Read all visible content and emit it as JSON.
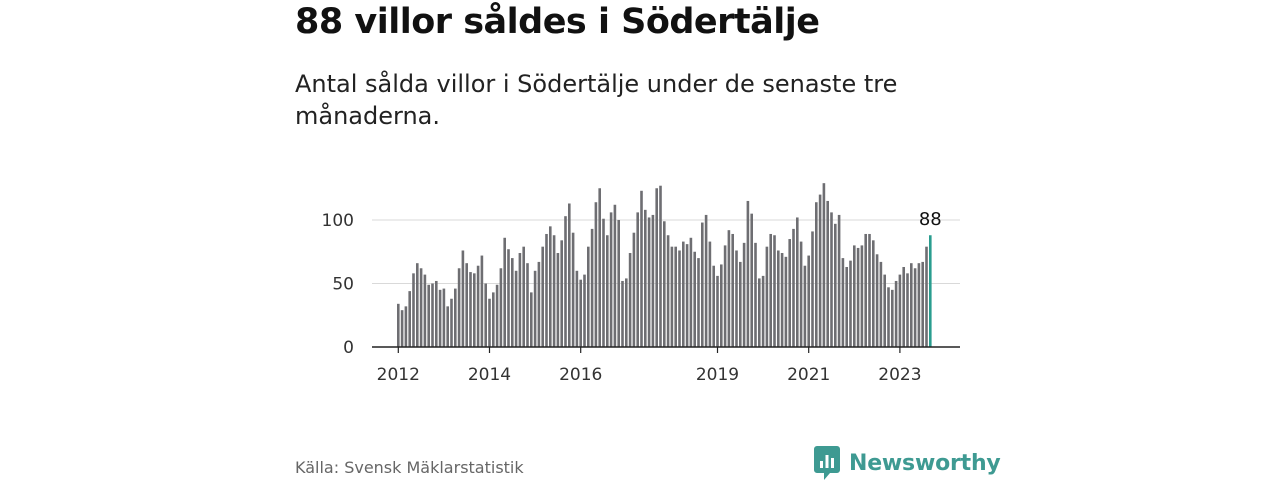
{
  "header": {
    "title": "88 villor såldes i Södertälje",
    "subtitle": "Antal sålda villor i Södertälje under de senaste tre månaderna."
  },
  "footer": {
    "source": "Källa: Svensk Mäklarstatistik",
    "brand": "Newsworthy"
  },
  "colors": {
    "bar": "#6e6e72",
    "highlight": "#2a9d8f",
    "grid": "#d9d9d9",
    "axis": "#222222",
    "brand": "#3e9a92"
  },
  "chart_data": {
    "type": "bar",
    "title": "88 villor såldes i Södertälje",
    "subtitle": "Antal sålda villor i Södertälje under de senaste tre månaderna.",
    "xlabel": "",
    "ylabel": "",
    "ylim": [
      0,
      135
    ],
    "yticks": [
      0,
      50,
      100
    ],
    "grid": true,
    "x_start": "2012-01",
    "xtick_labels": [
      {
        "label": "2012",
        "index": 0
      },
      {
        "label": "2014",
        "index": 24
      },
      {
        "label": "2016",
        "index": 48
      },
      {
        "label": "2019",
        "index": 84
      },
      {
        "label": "2021",
        "index": 108
      },
      {
        "label": "2023",
        "index": 132
      }
    ],
    "values": [
      34,
      29,
      32,
      44,
      58,
      66,
      62,
      57,
      49,
      50,
      52,
      45,
      46,
      32,
      38,
      46,
      62,
      76,
      66,
      59,
      58,
      64,
      72,
      50,
      38,
      43,
      49,
      62,
      86,
      77,
      70,
      60,
      74,
      79,
      66,
      43,
      60,
      67,
      79,
      89,
      95,
      88,
      74,
      84,
      103,
      113,
      90,
      60,
      53,
      57,
      79,
      93,
      114,
      125,
      101,
      88,
      106,
      112,
      100,
      52,
      54,
      74,
      90,
      106,
      123,
      108,
      102,
      104,
      125,
      127,
      99,
      88,
      79,
      79,
      76,
      83,
      81,
      86,
      75,
      70,
      98,
      104,
      83,
      64,
      56,
      65,
      80,
      92,
      89,
      76,
      67,
      82,
      115,
      105,
      82,
      54,
      56,
      79,
      89,
      88,
      76,
      74,
      71,
      85,
      93,
      102,
      83,
      64,
      72,
      91,
      114,
      120,
      129,
      115,
      106,
      97,
      104,
      70,
      63,
      68,
      80,
      78,
      80,
      89,
      89,
      84,
      73,
      67,
      57,
      47,
      45,
      52,
      57,
      63,
      58,
      66,
      62,
      66,
      67,
      79,
      88
    ],
    "highlight_index": 140,
    "annotation": {
      "label": "88",
      "index": 140
    }
  }
}
